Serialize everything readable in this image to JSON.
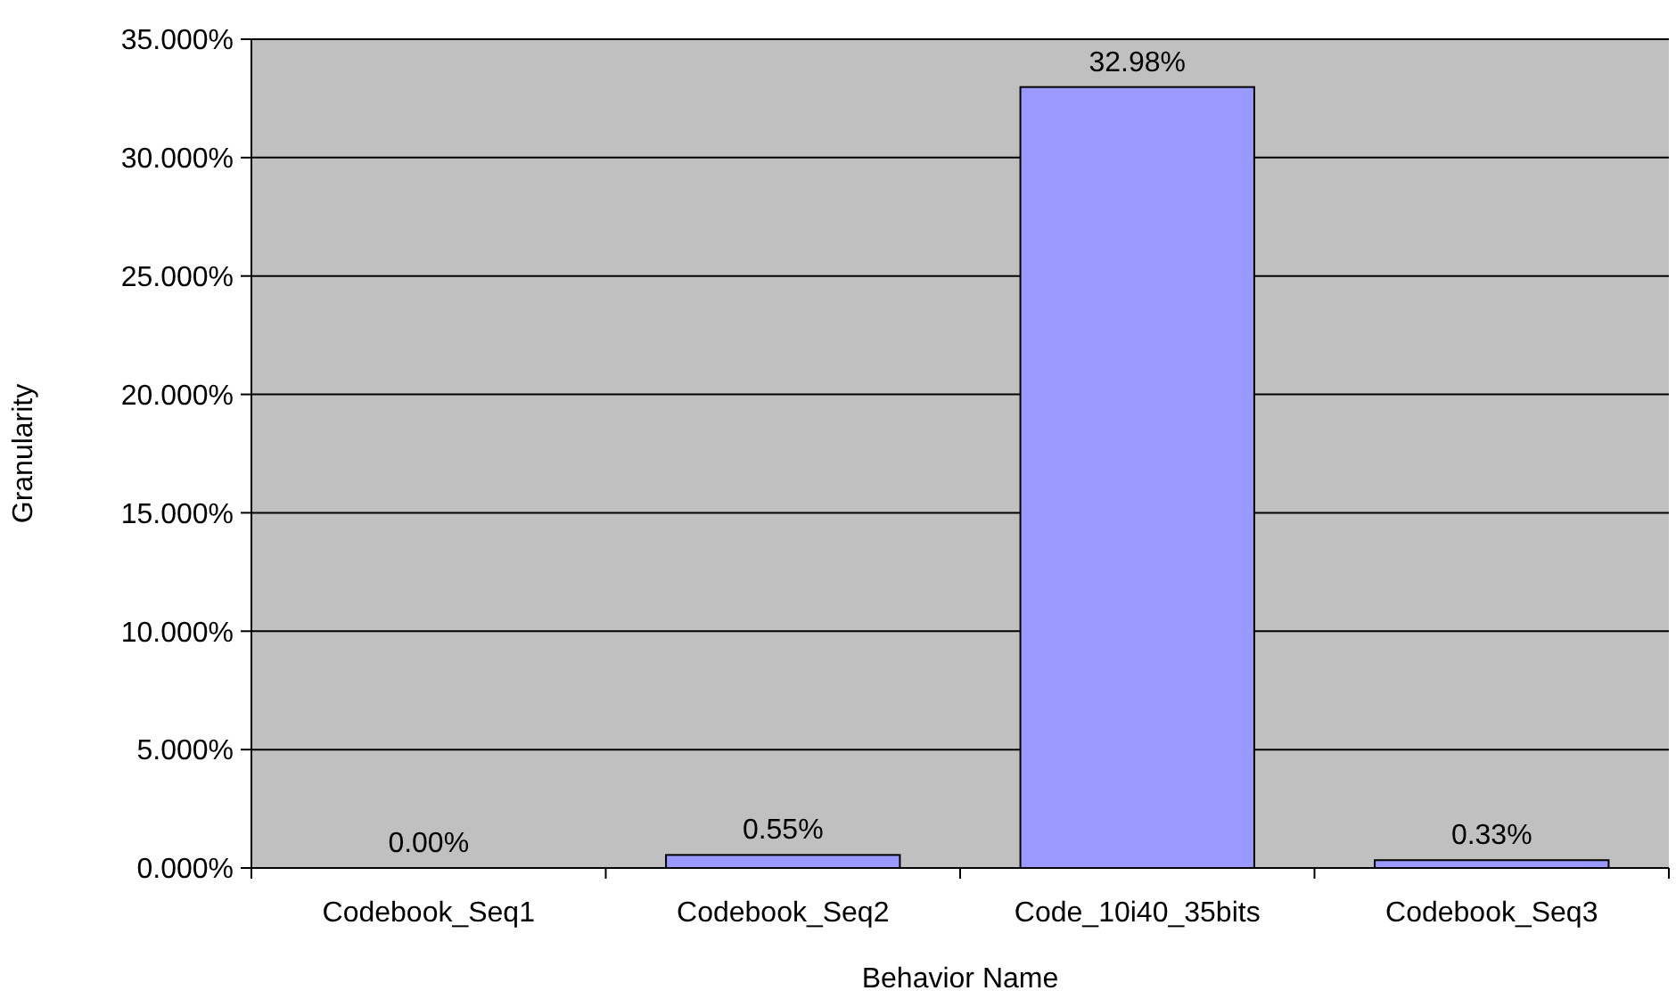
{
  "chart_data": {
    "type": "bar",
    "xlabel": "Behavior Name",
    "ylabel": "Granularity",
    "categories": [
      "Codebook_Seq1",
      "Codebook_Seq2",
      "Code_10i40_35bits",
      "Codebook_Seq3"
    ],
    "values": [
      0.0,
      0.55,
      32.98,
      0.33
    ],
    "color": "#9999ff",
    "value_labels": [
      "0.00%",
      "0.55%",
      "32.98%",
      "0.33%"
    ],
    "ylim": [
      0,
      35
    ],
    "yticks": [
      {
        "value": 0,
        "label": "0.000%"
      },
      {
        "value": 5,
        "label": "5.000%"
      },
      {
        "value": 10,
        "label": "10.000%"
      },
      {
        "value": 15,
        "label": "15.000%"
      },
      {
        "value": 20,
        "label": "20.000%"
      },
      {
        "value": 25,
        "label": "25.000%"
      },
      {
        "value": 30,
        "label": "30.000%"
      },
      {
        "value": 35,
        "label": "35.000%"
      }
    ],
    "grid": "y"
  }
}
